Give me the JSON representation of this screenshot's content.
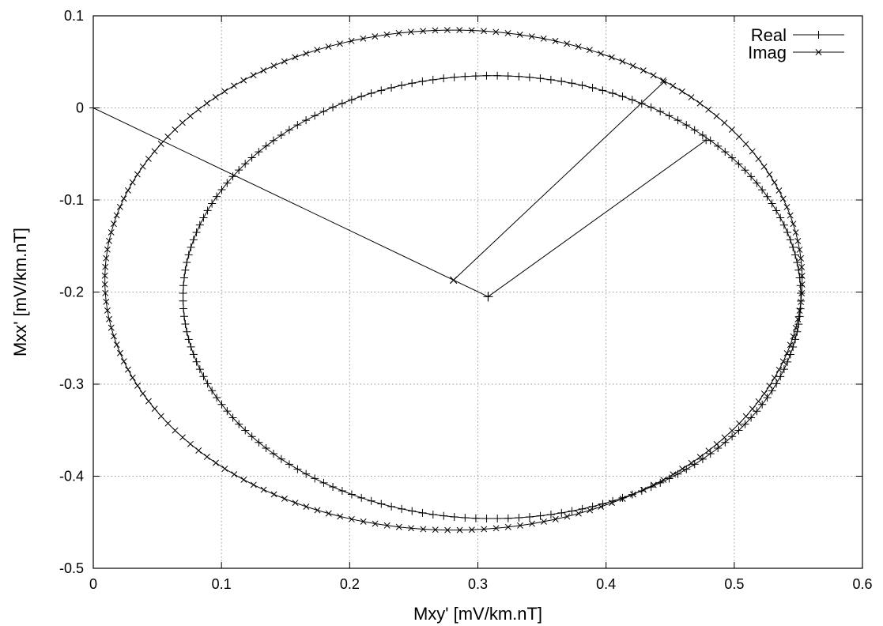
{
  "chart_data": {
    "type": "line",
    "title": "",
    "xlabel": "Mxy' [mV/km.nT]",
    "ylabel": "Mxx' [mV/km.nT]",
    "xlim": [
      0,
      0.6
    ],
    "ylim": [
      -0.5,
      0.1
    ],
    "xticks": [
      "0",
      "0.1",
      "0.2",
      "0.3",
      "0.4",
      "0.5",
      "0.6"
    ],
    "yticks": [
      "-0.5",
      "-0.4",
      "-0.3",
      "-0.2",
      "-0.1",
      "0",
      "0.1"
    ],
    "grid": true,
    "legend_position": "top-right",
    "series": [
      {
        "name": "Real",
        "marker": "plus",
        "ellipse": {
          "cx": 0.311,
          "cy": -0.2055,
          "rx": 0.241,
          "ry": 0.2405,
          "tilt_deg": -3
        },
        "vectors": [
          {
            "from": [
              0.308,
              -0.205
            ],
            "to": [
              0.0,
              0.0
            ]
          },
          {
            "from": [
              0.308,
              -0.205
            ],
            "to": [
              0.478,
              -0.035
            ]
          }
        ],
        "center": [
          0.308,
          -0.205
        ]
      },
      {
        "name": "Imag",
        "marker": "cross",
        "ellipse": {
          "cx": 0.281,
          "cy": -0.187,
          "rx": 0.272,
          "ry": 0.2715,
          "tilt_deg": -9
        },
        "vectors": [
          {
            "from": [
              0.281,
              -0.187
            ],
            "to": [
              0.445,
              0.028
            ]
          }
        ],
        "center": [
          0.281,
          -0.187
        ]
      }
    ]
  }
}
